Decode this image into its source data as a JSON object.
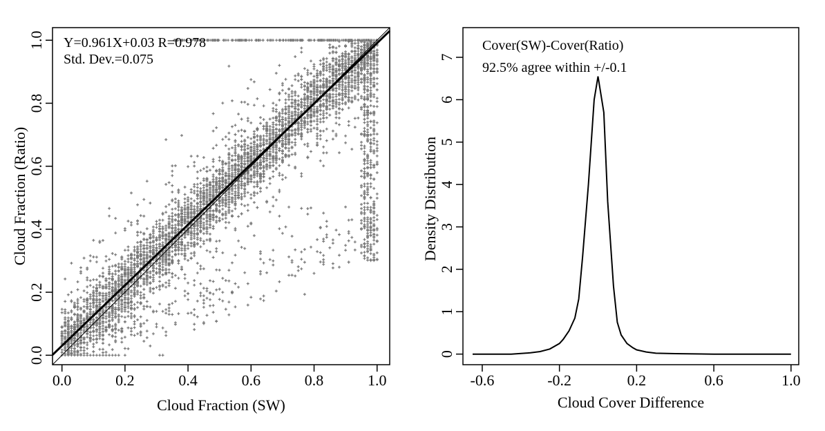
{
  "chart_data": [
    {
      "type": "scatter",
      "annotations": [
        "Y=0.961X+0.03  R=0.978",
        "Std. Dev.=0.075"
      ],
      "xlabel": "Cloud Fraction (SW)",
      "ylabel": "Cloud Fraction (Ratio)",
      "xlim": [
        -0.03,
        1.04
      ],
      "ylim": [
        -0.03,
        1.04
      ],
      "xticks": [
        0.0,
        0.2,
        0.4,
        0.6,
        0.8,
        1.0
      ],
      "xtick_labels": [
        "0.0",
        "0.2",
        "0.4",
        "0.6",
        "0.8",
        "1.0"
      ],
      "yticks": [
        0.0,
        0.2,
        0.4,
        0.6,
        0.8,
        1.0
      ],
      "ytick_labels": [
        "0.0",
        "0.2",
        "0.4",
        "0.6",
        "0.8",
        "1.0"
      ],
      "grid": false,
      "point_color": "#777777",
      "regression_line": {
        "slope": 0.961,
        "intercept": 0.03
      },
      "one_to_one_line": true,
      "points_description_clusters": [
        {
          "x": [
            0.0,
            1.0
          ],
          "y_center_slope": 0.961,
          "y_center_intercept": 0.03,
          "spread": 0.075
        }
      ]
    },
    {
      "type": "line",
      "annotations": [
        "Cover(SW)-Cover(Ratio)",
        "92.5% agree within +/-0.1"
      ],
      "xlabel": "Cloud Cover Difference",
      "ylabel": "Density Distribution",
      "xlim": [
        -0.7,
        1.04
      ],
      "ylim": [
        -0.25,
        7.7
      ],
      "xticks": [
        -0.6,
        -0.2,
        0.2,
        0.6,
        1.0
      ],
      "xtick_labels": [
        "-0.6",
        "-0.2",
        "0.2",
        "0.6",
        "1.0"
      ],
      "yticks": [
        0,
        1,
        2,
        3,
        4,
        5,
        6,
        7
      ],
      "ytick_labels": [
        "0",
        "1",
        "2",
        "3",
        "4",
        "5",
        "6",
        "7"
      ],
      "grid": false,
      "series": [
        {
          "x": [
            -0.65,
            -0.45,
            -0.35,
            -0.3,
            -0.25,
            -0.2,
            -0.18,
            -0.15,
            -0.12,
            -0.1,
            -0.08,
            -0.05,
            -0.02,
            0.0,
            0.03,
            0.05,
            0.08,
            0.1,
            0.12,
            0.15,
            0.18,
            0.2,
            0.25,
            0.3,
            0.4,
            0.6,
            1.0
          ],
          "values": [
            0.0,
            0.0,
            0.03,
            0.06,
            0.12,
            0.25,
            0.35,
            0.55,
            0.85,
            1.3,
            2.3,
            4.0,
            6.0,
            6.55,
            5.7,
            3.6,
            1.6,
            0.75,
            0.45,
            0.25,
            0.15,
            0.1,
            0.05,
            0.02,
            0.01,
            0.0,
            0.0
          ]
        }
      ]
    }
  ]
}
